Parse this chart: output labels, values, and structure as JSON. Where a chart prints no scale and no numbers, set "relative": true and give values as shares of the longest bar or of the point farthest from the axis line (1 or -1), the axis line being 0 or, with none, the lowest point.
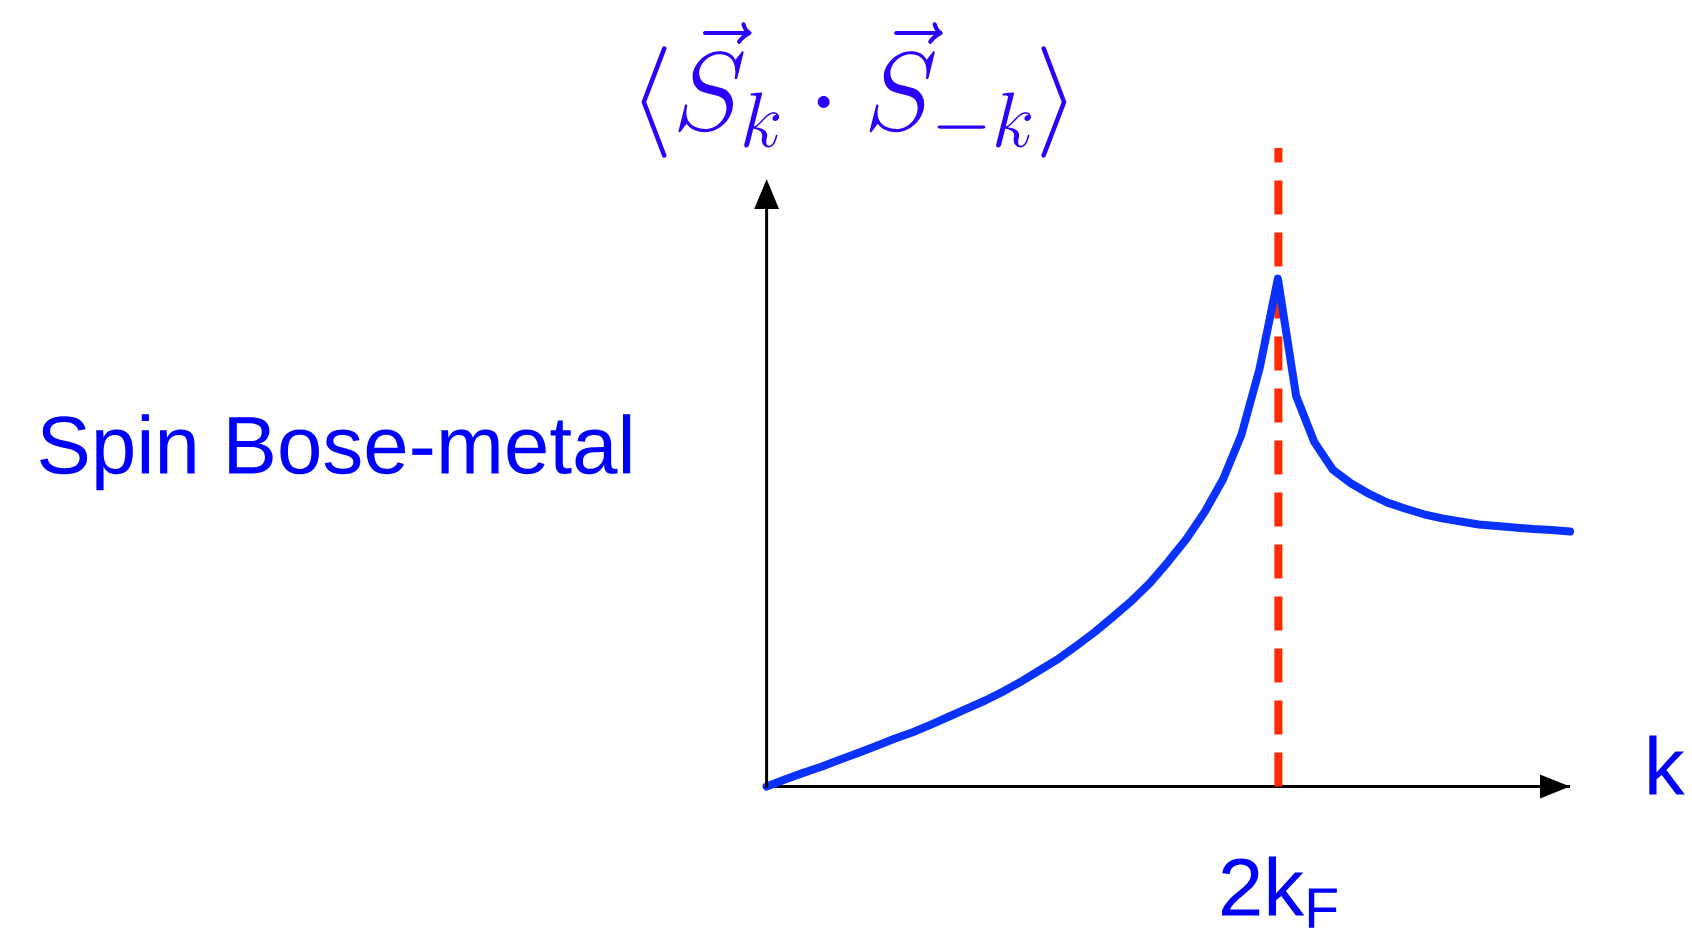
{
  "chart_data": {
    "type": "line",
    "relative": true,
    "title": "\\langle\\vec{S}_k \\cdot \\vec{S}_{-k}\\rangle",
    "xlabel": "k",
    "annotations": [
      "Spin Bose-metal",
      "2k$_{F}$"
    ],
    "categories": [
      null,
      null,
      null,
      null,
      null,
      null,
      null,
      null,
      null,
      null,
      null,
      null,
      null,
      null,
      null,
      null,
      null,
      null,
      null,
      null,
      null,
      null,
      null,
      null,
      null,
      null,
      null,
      null,
      null,
      null,
      null,
      null,
      null,
      null,
      null,
      null,
      null,
      null,
      null,
      null,
      null,
      null,
      null,
      null,
      null
    ],
    "series": [
      {
        "color": "#0a32ff",
        "values": [
          0,
          0.014,
          0.027,
          0.039,
          0.053,
          0.066,
          0.08,
          0.094,
          0.107,
          0.122,
          0.138,
          0.154,
          0.17,
          0.188,
          0.208,
          0.23,
          0.252,
          0.278,
          0.305,
          0.335,
          0.366,
          0.401,
          0.443,
          0.488,
          0.541,
          0.605,
          0.692,
          0.823,
          1,
          0.769,
          0.678,
          0.624,
          0.597,
          0.576,
          0.559,
          0.547,
          0.536,
          0.528,
          0.522,
          0.516,
          0.513,
          0.51,
          0.507,
          0.505,
          0.502
        ]
      }
    ],
    "line_style": "solid"
  }
}
